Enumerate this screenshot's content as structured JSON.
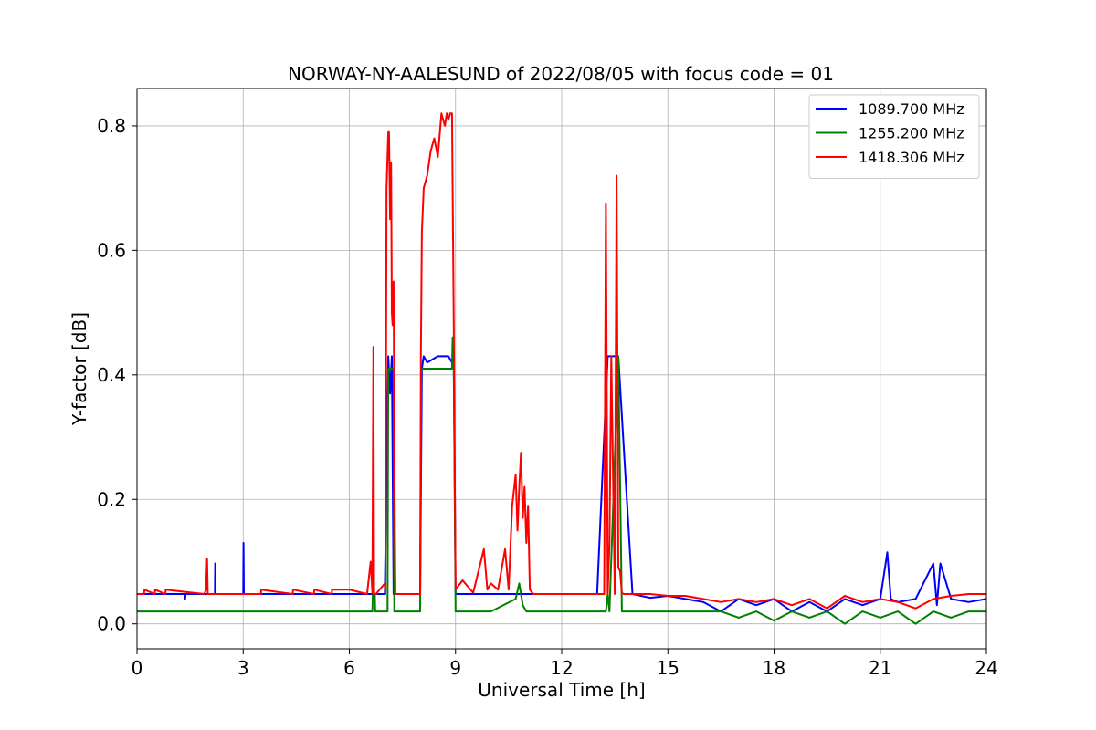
{
  "chart_data": {
    "type": "line",
    "title": "NORWAY-NY-AALESUND of 2022/08/05 with focus code = 01",
    "xlabel": "Universal Time [h]",
    "ylabel": "Y-factor [dB]",
    "xlim": [
      0,
      24
    ],
    "ylim": [
      -0.04,
      0.86
    ],
    "xticks": [
      0,
      3,
      6,
      9,
      12,
      15,
      18,
      21,
      24
    ],
    "yticks": [
      0.0,
      0.2,
      0.4,
      0.6,
      0.8
    ],
    "xtick_labels": [
      "0",
      "3",
      "6",
      "9",
      "12",
      "15",
      "18",
      "21",
      "24"
    ],
    "ytick_labels": [
      "0.0",
      "0.2",
      "0.4",
      "0.6",
      "0.8"
    ],
    "grid": true,
    "legend_position": "top-right",
    "series": [
      {
        "name": "1089.700 MHz",
        "color": "#0000ff",
        "x": [
          0,
          1.35,
          1.36,
          1.37,
          2.0,
          2.2,
          2.21,
          2.22,
          3.0,
          3.01,
          3.02,
          6.6,
          6.7,
          7.0,
          7.1,
          7.15,
          7.2,
          7.25,
          7.3,
          8.0,
          8.05,
          8.1,
          8.2,
          8.5,
          8.8,
          8.9,
          8.95,
          9.0,
          10.0,
          11.0,
          13.0,
          13.3,
          13.6,
          14.0,
          14.5,
          15.0,
          15.5,
          16.0,
          16.5,
          17.0,
          17.5,
          18.0,
          18.5,
          19.0,
          19.5,
          20.0,
          20.5,
          21.0,
          21.2,
          21.3,
          21.5,
          22.0,
          22.5,
          22.6,
          22.7,
          23.0,
          23.5,
          24.0
        ],
        "y": [
          0.048,
          0.048,
          0.04,
          0.048,
          0.048,
          0.048,
          0.097,
          0.048,
          0.048,
          0.13,
          0.048,
          0.048,
          0.048,
          0.048,
          0.43,
          0.37,
          0.43,
          0.048,
          0.048,
          0.048,
          0.41,
          0.43,
          0.42,
          0.43,
          0.43,
          0.42,
          0.43,
          0.048,
          0.048,
          0.048,
          0.048,
          0.43,
          0.43,
          0.048,
          0.042,
          0.045,
          0.04,
          0.035,
          0.02,
          0.04,
          0.03,
          0.04,
          0.02,
          0.035,
          0.02,
          0.04,
          0.03,
          0.04,
          0.115,
          0.04,
          0.035,
          0.04,
          0.097,
          0.03,
          0.097,
          0.04,
          0.035,
          0.04
        ]
      },
      {
        "name": "1255.200 MHz",
        "color": "#008000",
        "x": [
          0,
          6.65,
          6.66,
          6.72,
          6.73,
          7.08,
          7.1,
          7.18,
          7.25,
          7.27,
          8.0,
          8.03,
          8.1,
          8.5,
          8.9,
          8.92,
          8.95,
          9.0,
          10.0,
          10.7,
          10.8,
          10.9,
          11.0,
          11.05,
          13.0,
          13.25,
          13.3,
          13.35,
          13.6,
          13.7,
          15.0,
          16.0,
          16.5,
          17.0,
          17.5,
          18.0,
          18.5,
          19.0,
          19.5,
          20.0,
          20.5,
          21.0,
          21.5,
          22.0,
          22.5,
          23.0,
          23.5,
          24.0
        ],
        "y": [
          0.02,
          0.02,
          0.048,
          0.048,
          0.02,
          0.02,
          0.41,
          0.41,
          0.41,
          0.02,
          0.02,
          0.41,
          0.41,
          0.41,
          0.41,
          0.46,
          0.41,
          0.02,
          0.02,
          0.04,
          0.065,
          0.03,
          0.02,
          0.02,
          0.02,
          0.02,
          0.048,
          0.02,
          0.43,
          0.02,
          0.02,
          0.02,
          0.02,
          0.01,
          0.02,
          0.005,
          0.02,
          0.01,
          0.02,
          0.0,
          0.02,
          0.01,
          0.02,
          0.0,
          0.02,
          0.01,
          0.02,
          0.02
        ]
      },
      {
        "name": "1418.306 MHz",
        "color": "#ff0000",
        "x": [
          0,
          0.2,
          0.21,
          0.5,
          0.51,
          0.8,
          0.81,
          1.9,
          1.95,
          1.98,
          2.0,
          3.5,
          3.51,
          4.4,
          4.41,
          5.0,
          5.01,
          5.5,
          5.51,
          6.0,
          6.5,
          6.6,
          6.65,
          6.68,
          6.7,
          6.75,
          7.0,
          7.02,
          7.05,
          7.1,
          7.12,
          7.15,
          7.18,
          7.2,
          7.22,
          7.25,
          7.28,
          7.3,
          7.5,
          8.0,
          8.02,
          8.05,
          8.1,
          8.2,
          8.3,
          8.4,
          8.5,
          8.6,
          8.7,
          8.75,
          8.8,
          8.85,
          8.9,
          8.95,
          9.0,
          9.2,
          9.5,
          9.8,
          9.9,
          10.0,
          10.2,
          10.4,
          10.5,
          10.6,
          10.7,
          10.75,
          10.8,
          10.85,
          10.9,
          10.95,
          11.0,
          11.05,
          11.1,
          11.2,
          13.0,
          13.2,
          13.25,
          13.28,
          13.3,
          13.35,
          13.4,
          13.5,
          13.55,
          13.6,
          13.65,
          13.7,
          13.75,
          13.8,
          14.0,
          14.5,
          15.0,
          15.5,
          16.0,
          16.5,
          17.0,
          17.5,
          18.0,
          18.5,
          19.0,
          19.5,
          20.0,
          20.5,
          21.0,
          21.5,
          22.0,
          22.5,
          23.0,
          23.5,
          24.0
        ],
        "y": [
          0.048,
          0.048,
          0.055,
          0.048,
          0.055,
          0.048,
          0.055,
          0.048,
          0.055,
          0.105,
          0.048,
          0.048,
          0.055,
          0.048,
          0.055,
          0.048,
          0.055,
          0.048,
          0.055,
          0.055,
          0.048,
          0.1,
          0.05,
          0.445,
          0.048,
          0.048,
          0.065,
          0.048,
          0.7,
          0.79,
          0.79,
          0.65,
          0.74,
          0.5,
          0.48,
          0.55,
          0.2,
          0.048,
          0.048,
          0.048,
          0.43,
          0.63,
          0.7,
          0.72,
          0.76,
          0.78,
          0.75,
          0.82,
          0.8,
          0.82,
          0.81,
          0.82,
          0.82,
          0.48,
          0.055,
          0.07,
          0.05,
          0.12,
          0.055,
          0.065,
          0.055,
          0.12,
          0.055,
          0.19,
          0.24,
          0.15,
          0.22,
          0.275,
          0.17,
          0.22,
          0.13,
          0.19,
          0.055,
          0.048,
          0.048,
          0.048,
          0.675,
          0.3,
          0.048,
          0.13,
          0.43,
          0.048,
          0.72,
          0.09,
          0.085,
          0.05,
          0.048,
          0.048,
          0.048,
          0.048,
          0.045,
          0.045,
          0.04,
          0.035,
          0.04,
          0.035,
          0.04,
          0.03,
          0.04,
          0.025,
          0.045,
          0.035,
          0.04,
          0.035,
          0.025,
          0.04,
          0.045,
          0.048,
          0.048
        ]
      }
    ]
  }
}
